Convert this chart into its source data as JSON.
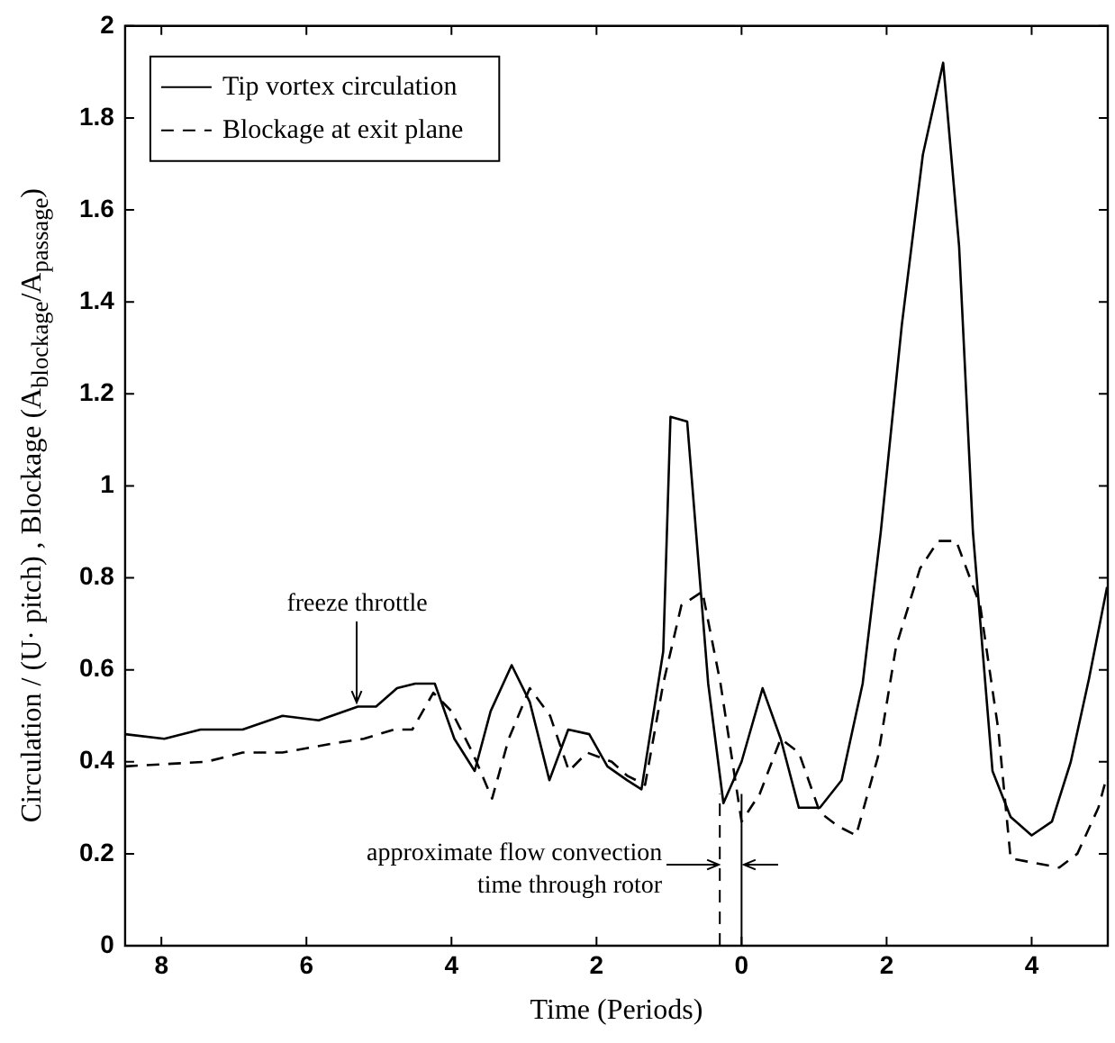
{
  "chart_data": {
    "type": "line",
    "xlabel": "Time (Periods)",
    "ylabel": "Circulation / (U· pitch) , Blockage (A$_{blockage}$/A$_{passage}$)",
    "xlim": [
      -8.5,
      5.05
    ],
    "ylim": [
      0,
      2
    ],
    "xticks": [
      {
        "value": -8,
        "label": "8"
      },
      {
        "value": -6,
        "label": "6"
      },
      {
        "value": -4,
        "label": "4"
      },
      {
        "value": -2,
        "label": "2"
      },
      0,
      2,
      4
    ],
    "yticks": [
      0,
      0.2,
      0.4,
      0.6,
      0.8,
      1,
      1.2,
      1.4,
      1.6,
      1.8,
      2
    ],
    "grid": false,
    "legend": "top left",
    "marker": "none",
    "series": [
      {
        "name": "Tip vortex circulation",
        "color": "#000000",
        "line_style": "solid",
        "x": [
          -8.5,
          -7.96,
          -7.46,
          -6.88,
          -6.33,
          -5.83,
          -5.29,
          -5.04,
          -4.75,
          -4.5,
          -4.23,
          -3.96,
          -3.68,
          -3.46,
          -3.17,
          -2.92,
          -2.65,
          -2.39,
          -2.1,
          -1.85,
          -1.58,
          -1.38,
          -1.08,
          -0.98,
          -0.75,
          -0.46,
          -0.25,
          0,
          0.29,
          0.54,
          0.79,
          1.08,
          1.38,
          1.67,
          1.92,
          2.21,
          2.5,
          2.78,
          3,
          3.19,
          3.46,
          3.71,
          4,
          4.28,
          4.54,
          4.79,
          5.04
        ],
        "values": [
          0.46,
          0.45,
          0.47,
          0.47,
          0.5,
          0.49,
          0.52,
          0.52,
          0.56,
          0.57,
          0.57,
          0.45,
          0.38,
          0.51,
          0.61,
          0.53,
          0.36,
          0.47,
          0.46,
          0.39,
          0.36,
          0.34,
          0.64,
          1.15,
          1.14,
          0.57,
          0.31,
          0.4,
          0.56,
          0.45,
          0.3,
          0.3,
          0.36,
          0.57,
          0.9,
          1.35,
          1.72,
          1.92,
          1.52,
          0.9,
          0.38,
          0.28,
          0.24,
          0.27,
          0.4,
          0.58,
          0.78
        ]
      },
      {
        "name": "Blockage at exit plane",
        "color": "#000000",
        "line_style": "dashed",
        "x": [
          -8.5,
          -7.38,
          -6.88,
          -6.33,
          -5.63,
          -5.21,
          -4.79,
          -4.54,
          -4.25,
          -4,
          -3.71,
          -3.44,
          -3.21,
          -2.92,
          -2.64,
          -2.38,
          -2.13,
          -1.79,
          -1.58,
          -1.33,
          -1.08,
          -0.83,
          -0.54,
          -0.29,
          0,
          0.25,
          0.54,
          0.79,
          1.08,
          1.33,
          1.58,
          1.88,
          2.13,
          2.46,
          2.71,
          2.96,
          3.29,
          3.54,
          3.71,
          4.04,
          4.38,
          4.63,
          4.92,
          5.04
        ],
        "values": [
          0.39,
          0.4,
          0.42,
          0.42,
          0.44,
          0.45,
          0.47,
          0.47,
          0.55,
          0.51,
          0.42,
          0.32,
          0.45,
          0.56,
          0.5,
          0.38,
          0.42,
          0.4,
          0.37,
          0.35,
          0.57,
          0.74,
          0.77,
          0.57,
          0.27,
          0.33,
          0.45,
          0.42,
          0.29,
          0.26,
          0.24,
          0.41,
          0.65,
          0.82,
          0.88,
          0.88,
          0.74,
          0.47,
          0.19,
          0.18,
          0.17,
          0.2,
          0.3,
          0.37
        ]
      }
    ],
    "ref_lines": [
      {
        "axis": "x",
        "value": -0.3,
        "line_style": "dashed",
        "color": "#000000"
      },
      {
        "axis": "x",
        "value": 0,
        "line_style": "solid",
        "color": "#000000"
      }
    ],
    "annotations": [
      {
        "text": "freeze throttle",
        "x": -5.3,
        "y": 0.52
      },
      "approximate flow convection time through rotor"
    ]
  }
}
